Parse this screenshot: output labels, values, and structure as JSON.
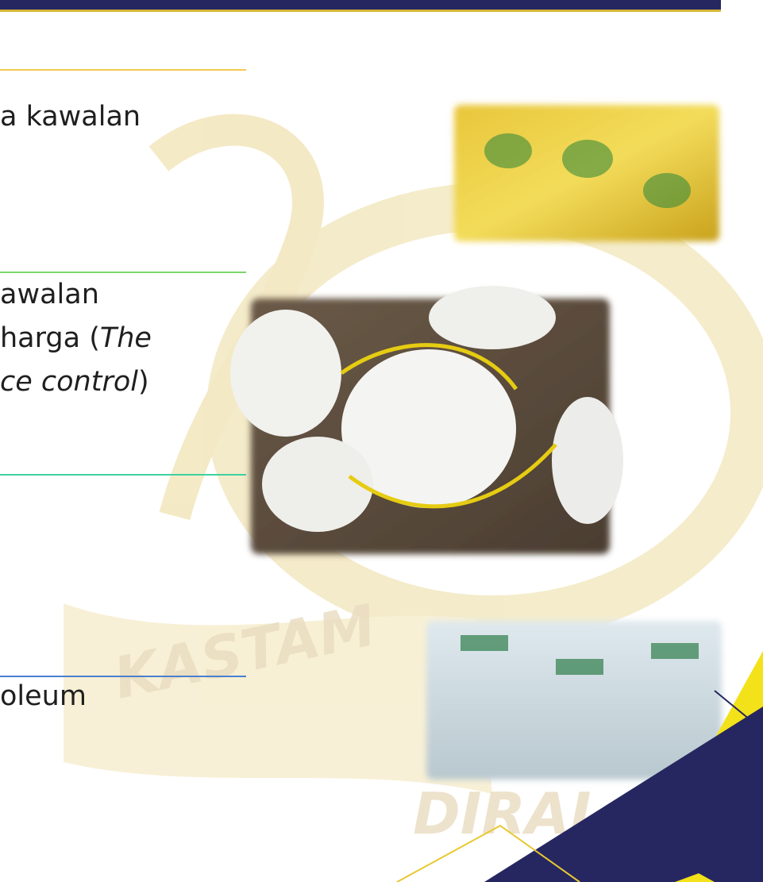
{
  "items": [
    {
      "lines": [
        [
          "a kawalan"
        ]
      ]
    },
    {
      "lines": [
        [
          "awalan"
        ],
        [
          "harga (",
          "The"
        ],
        [
          "ce control",
          ")"
        ]
      ]
    },
    {
      "lines": [
        [
          "oleum"
        ]
      ]
    }
  ],
  "watermark": {
    "top": "KASTAM",
    "bottom": "DIRAJ"
  }
}
